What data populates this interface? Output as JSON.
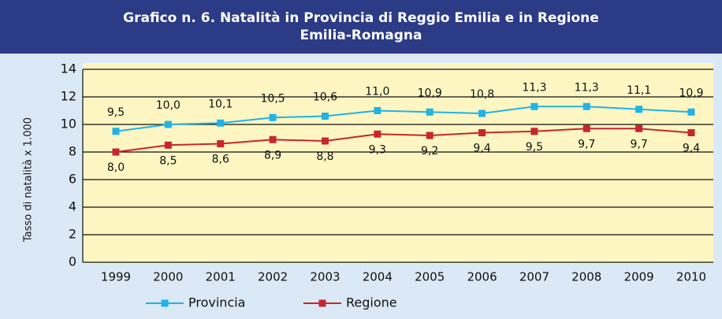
{
  "chart_data": {
    "type": "line",
    "title": "Grafico n. 6. Natalità in Provincia di Reggio Emilia e in Regione Emilia-Romagna",
    "y_label": "Tasso di natalità x 1.000",
    "categories": [
      "1999",
      "2000",
      "2001",
      "2002",
      "2003",
      "2004",
      "2005",
      "2006",
      "2007",
      "2008",
      "2009",
      "2010"
    ],
    "series": [
      {
        "name": "Provincia",
        "color": "#1fb3e6",
        "values": [
          9.5,
          10.0,
          10.1,
          10.5,
          10.6,
          11.0,
          10.9,
          10.8,
          11.3,
          11.3,
          11.1,
          10.9
        ],
        "value_labels": [
          "9,5",
          "10,0",
          "10,1",
          "10,5",
          "10,6",
          "11,0",
          "10,9",
          "10,8",
          "11,3",
          "11,3",
          "11,1",
          "10,9"
        ]
      },
      {
        "name": "Regione",
        "color": "#c8262c",
        "values": [
          8.0,
          8.5,
          8.6,
          8.9,
          8.8,
          9.3,
          9.2,
          9.4,
          9.5,
          9.7,
          9.7,
          9.4
        ],
        "value_labels": [
          "8,0",
          "8,5",
          "8,6",
          "8,9",
          "8,8",
          "9,3",
          "9,2",
          "9,4",
          "9,5",
          "9,7",
          "9,7",
          "9,4"
        ]
      }
    ],
    "ylim": [
      0,
      14
    ],
    "yticks": [
      0,
      2,
      4,
      6,
      8,
      10,
      12,
      14
    ],
    "grid": true,
    "legend": "bottom"
  }
}
